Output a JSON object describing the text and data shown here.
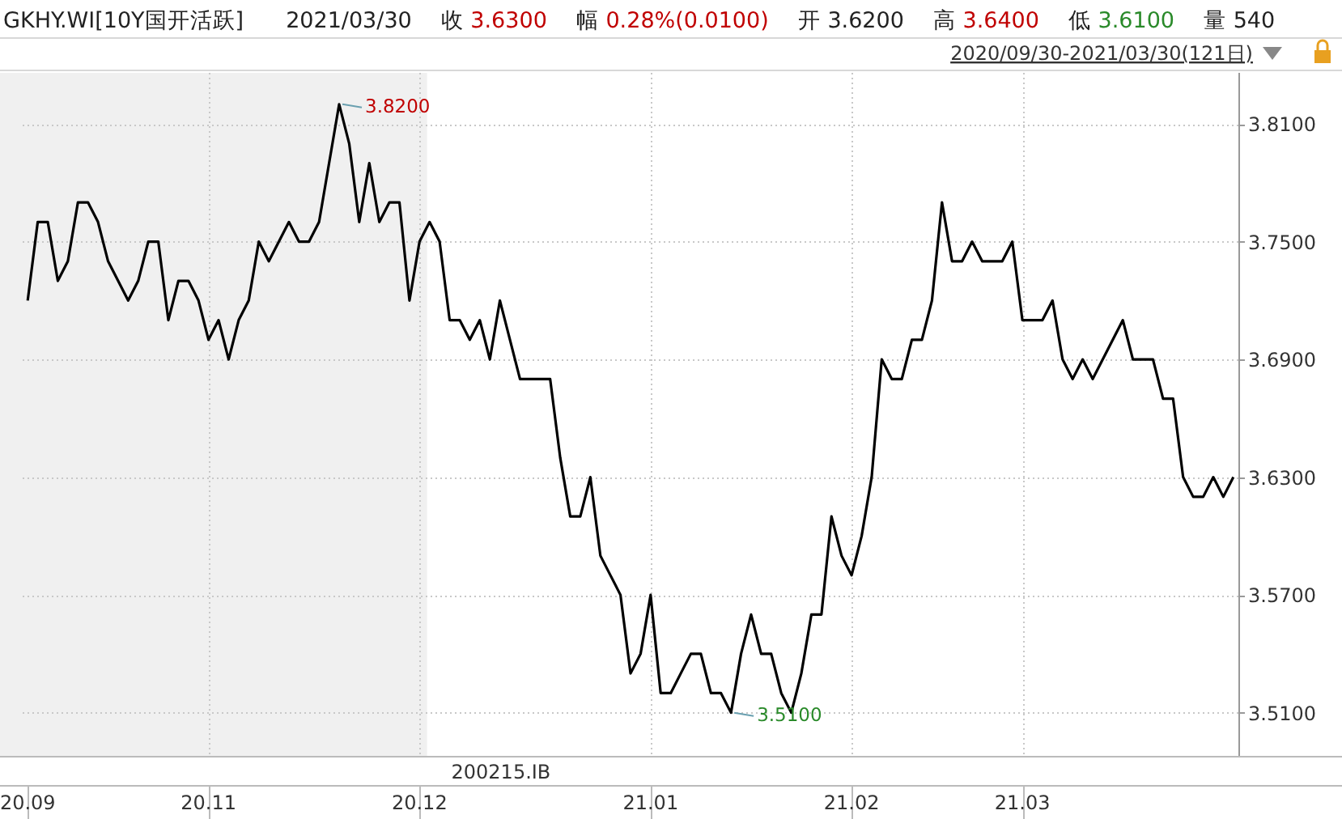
{
  "chart_data": {
    "type": "line",
    "title": "GKHY.WI[10Y国开活跃]",
    "subtitle": "2020/09/30-2021/03/30(121日)",
    "categories": [
      "20.09",
      null,
      null,
      null,
      null,
      null,
      null,
      null,
      null,
      null,
      null,
      null,
      null,
      null,
      null,
      null,
      null,
      null,
      "20.11",
      null,
      null,
      null,
      null,
      null,
      null,
      null,
      null,
      null,
      null,
      null,
      null,
      null,
      null,
      null,
      null,
      null,
      null,
      null,
      null,
      "20.12",
      null,
      null,
      null,
      null,
      null,
      null,
      null,
      null,
      null,
      null,
      null,
      null,
      null,
      null,
      null,
      null,
      null,
      null,
      null,
      null,
      null,
      null,
      "21.01",
      null,
      null,
      null,
      null,
      null,
      null,
      null,
      null,
      null,
      null,
      null,
      null,
      null,
      null,
      null,
      null,
      null,
      null,
      null,
      "21.02",
      null,
      null,
      null,
      null,
      null,
      null,
      null,
      null,
      null,
      null,
      null,
      null,
      null,
      null,
      null,
      null,
      "21.03",
      null,
      null,
      null,
      null,
      null,
      null,
      null,
      null,
      null,
      null,
      null,
      null,
      null,
      null,
      null,
      null,
      null,
      null,
      null,
      null,
      null
    ],
    "series": [
      {
        "color": "#000000",
        "values": [
          3.72,
          3.76,
          3.76,
          3.73,
          3.74,
          3.77,
          3.77,
          3.76,
          3.74,
          3.73,
          3.72,
          3.73,
          3.75,
          3.75,
          3.71,
          3.73,
          3.73,
          3.72,
          3.7,
          3.71,
          3.69,
          3.71,
          3.72,
          3.75,
          3.74,
          3.75,
          3.76,
          3.75,
          3.75,
          3.76,
          3.79,
          3.82,
          3.8,
          3.76,
          3.79,
          3.76,
          3.77,
          3.77,
          3.72,
          3.75,
          3.76,
          3.75,
          3.71,
          3.71,
          3.7,
          3.71,
          3.69,
          3.72,
          3.7,
          3.68,
          3.68,
          3.68,
          3.68,
          3.64,
          3.61,
          3.61,
          3.63,
          3.59,
          3.58,
          3.57,
          3.53,
          3.54,
          3.57,
          3.52,
          3.52,
          3.53,
          3.54,
          3.54,
          3.52,
          3.52,
          3.51,
          3.54,
          3.56,
          3.54,
          3.54,
          3.52,
          3.51,
          3.53,
          3.56,
          3.56,
          3.61,
          3.59,
          3.58,
          3.6,
          3.63,
          3.69,
          3.68,
          3.68,
          3.7,
          3.7,
          3.72,
          3.77,
          3.74,
          3.74,
          3.75,
          3.74,
          3.74,
          3.74,
          3.75,
          3.71,
          3.71,
          3.71,
          3.72,
          3.69,
          3.68,
          3.69,
          3.68,
          3.69,
          3.7,
          3.71,
          3.69,
          3.69,
          3.69,
          3.67,
          3.67,
          3.63,
          3.62,
          3.62,
          3.63,
          3.62,
          3.63
        ]
      }
    ],
    "ylim": [
      3.488,
      3.836
    ],
    "yticks": [
      {
        "value": 3.51,
        "label": "3.5100"
      },
      {
        "value": 3.57,
        "label": "3.5700"
      },
      {
        "value": 3.63,
        "label": "3.6300"
      },
      {
        "value": 3.69,
        "label": "3.6900"
      },
      {
        "value": 3.75,
        "label": "3.7500"
      },
      {
        "value": 3.81,
        "label": "3.8100"
      }
    ],
    "grid": true,
    "annotations": [
      "2021/03/30",
      "收 3.6300",
      "幅 0.28%(0.0100)",
      "开 3.6200",
      "高 3.6400",
      "低 3.6100",
      "量 540",
      "200215.IB",
      "3.8200",
      "3.5100"
    ]
  }
}
